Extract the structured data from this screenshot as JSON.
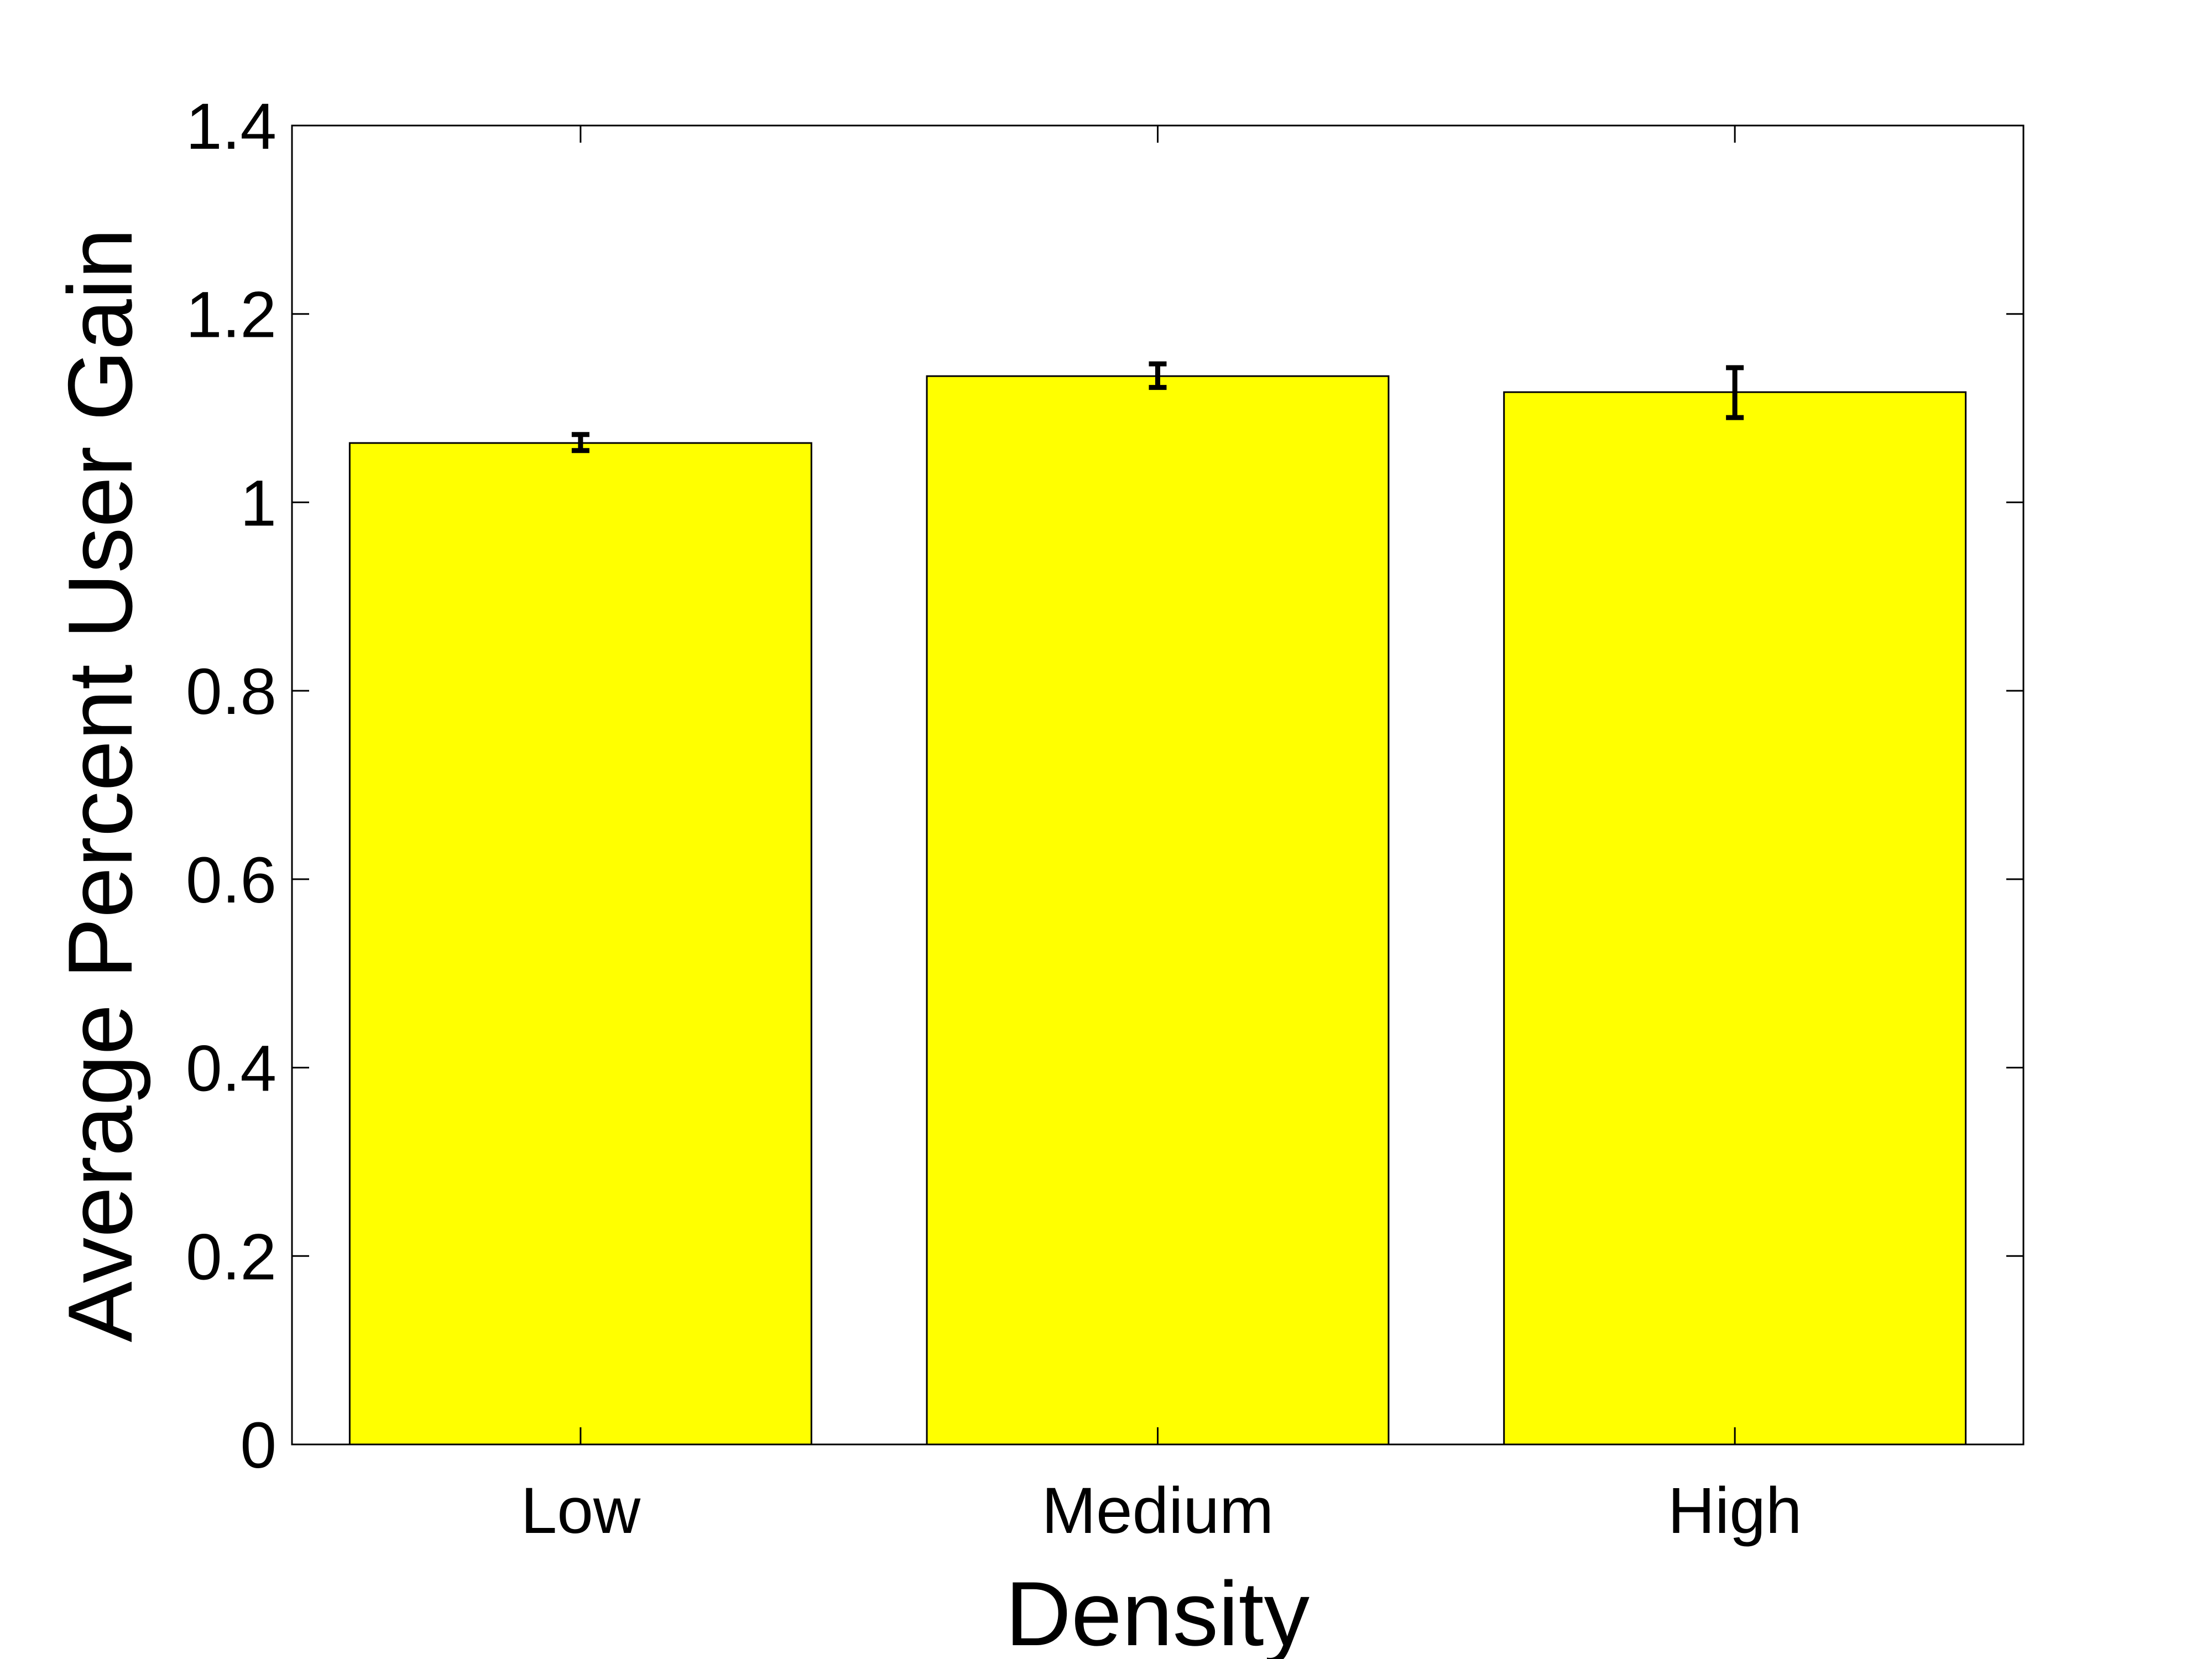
{
  "chart_data": {
    "type": "bar",
    "title": "",
    "xlabel": "Density",
    "ylabel": "Average Percent User Gain",
    "categories": [
      "Low",
      "Medium",
      "High"
    ],
    "values": [
      1.063,
      1.134,
      1.117
    ],
    "error_low": [
      1.055,
      1.122,
      1.09
    ],
    "error_high": [
      1.072,
      1.147,
      1.143
    ],
    "ylim": [
      0,
      1.4
    ],
    "yticks": [
      0,
      0.2,
      0.4,
      0.6,
      0.8,
      1,
      1.2,
      1.4
    ],
    "ytick_labels": [
      "0",
      "0.2",
      "0.4",
      "0.6",
      "0.8",
      "1",
      "1.2",
      "1.4"
    ],
    "grid": false,
    "legend": "none",
    "colors": {
      "bar_fill": "#ffff00",
      "bar_edge": "#000000",
      "error_bar": "#000000",
      "axis": "#000000"
    }
  }
}
